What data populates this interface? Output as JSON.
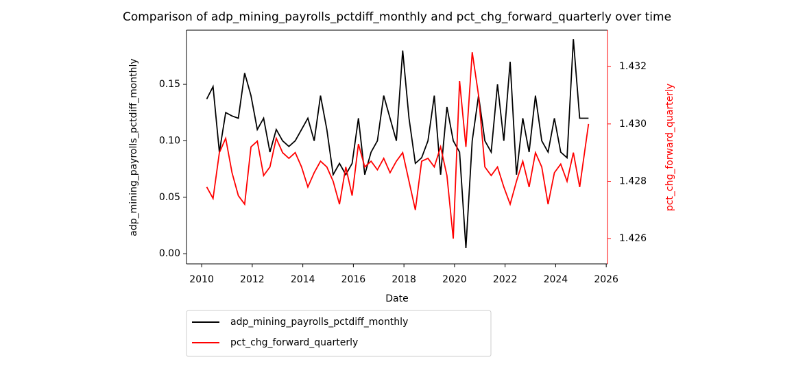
{
  "chart_data": {
    "type": "line",
    "title": "Comparison of adp_mining_payrolls_pctdiff_monthly and pct_chg_forward_quarterly over time",
    "x_label": "Date",
    "y_label": "adp_mining_payrolls_pctdiff_monthly",
    "y2_label": "pct_chg_forward_quarterly",
    "x": [
      2010.2,
      2010.45,
      2010.7,
      2010.95,
      2011.2,
      2011.45,
      2011.7,
      2011.95,
      2012.2,
      2012.45,
      2012.7,
      2012.95,
      2013.2,
      2013.45,
      2013.7,
      2013.95,
      2014.2,
      2014.45,
      2014.7,
      2014.95,
      2015.2,
      2015.45,
      2015.7,
      2015.95,
      2016.2,
      2016.45,
      2016.7,
      2016.95,
      2017.2,
      2017.45,
      2017.7,
      2017.95,
      2018.2,
      2018.45,
      2018.7,
      2018.95,
      2019.2,
      2019.45,
      2019.7,
      2019.95,
      2020.2,
      2020.45,
      2020.7,
      2020.95,
      2021.2,
      2021.45,
      2021.7,
      2021.95,
      2022.2,
      2022.45,
      2022.7,
      2022.95,
      2023.2,
      2023.45,
      2023.7,
      2023.95,
      2024.2,
      2024.45,
      2024.7,
      2024.95,
      2025.3
    ],
    "series": [
      {
        "name": "adp_mining_payrolls_pctdiff_monthly",
        "color": "#000000",
        "values": [
          0.137,
          0.148,
          0.09,
          0.125,
          0.122,
          0.12,
          0.16,
          0.14,
          0.11,
          0.12,
          0.09,
          0.11,
          0.1,
          0.095,
          0.1,
          0.11,
          0.12,
          0.1,
          0.14,
          0.11,
          0.07,
          0.08,
          0.07,
          0.08,
          0.12,
          0.07,
          0.09,
          0.1,
          0.14,
          0.12,
          0.1,
          0.18,
          0.12,
          0.08,
          0.085,
          0.1,
          0.14,
          0.07,
          0.13,
          0.1,
          0.09,
          0.005,
          0.1,
          0.14,
          0.1,
          0.09,
          0.15,
          0.1,
          0.17,
          0.07,
          0.12,
          0.09,
          0.14,
          0.1,
          0.09,
          0.12,
          0.09,
          0.085,
          0.19,
          0.12,
          0.12
        ]
      },
      {
        "name": "pct_chg_forward_quarterly",
        "color": "#ff0000",
        "axis": "y2",
        "values": [
          1.4278,
          1.4274,
          1.429,
          1.4295,
          1.4283,
          1.4275,
          1.4272,
          1.4292,
          1.4294,
          1.4282,
          1.4285,
          1.4295,
          1.429,
          1.4288,
          1.429,
          1.4285,
          1.4278,
          1.4283,
          1.4287,
          1.4285,
          1.428,
          1.4272,
          1.4285,
          1.4275,
          1.4293,
          1.4285,
          1.4287,
          1.4284,
          1.4288,
          1.4283,
          1.4287,
          1.429,
          1.428,
          1.427,
          1.4287,
          1.4288,
          1.4285,
          1.4292,
          1.4282,
          1.426,
          1.4315,
          1.4292,
          1.4325,
          1.431,
          1.4285,
          1.4282,
          1.4285,
          1.4278,
          1.4272,
          1.428,
          1.4287,
          1.4278,
          1.429,
          1.4285,
          1.4272,
          1.4283,
          1.4286,
          1.428,
          1.429,
          1.4278,
          1.43
        ]
      }
    ],
    "xlim": [
      2009.4,
      2026.05
    ],
    "xticks": [
      2010,
      2012,
      2014,
      2016,
      2018,
      2020,
      2022,
      2024,
      2026
    ],
    "ylim": [
      -0.009,
      0.198
    ],
    "yticks": [
      {
        "value": 0,
        "label": "0.00"
      },
      {
        "value": 0.05,
        "label": "0.05"
      },
      {
        "value": 0.1,
        "label": "0.10"
      },
      {
        "value": 0.15,
        "label": "0.15"
      }
    ],
    "y2lim": [
      1.42512,
      1.43327
    ],
    "y2ticks": [
      1.426,
      1.428,
      {
        "value": 1.43,
        "label": "1.430"
      },
      1.432
    ],
    "legend": "below"
  }
}
